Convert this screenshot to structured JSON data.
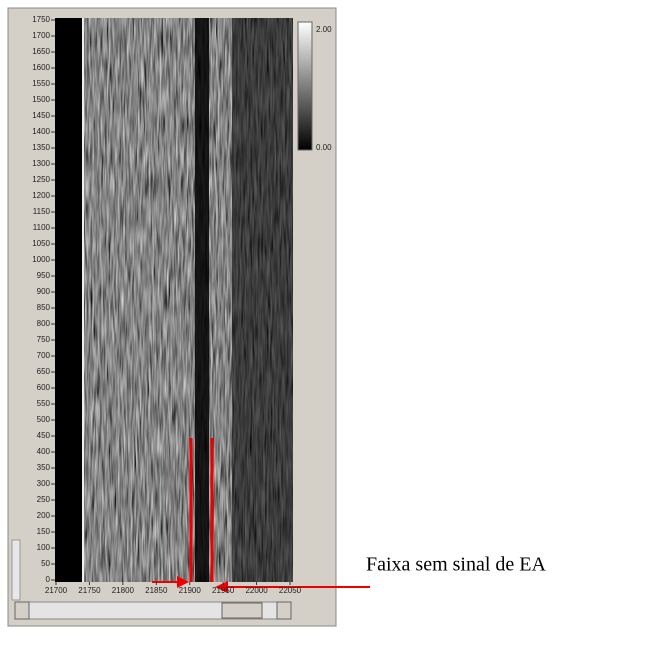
{
  "graph": {
    "y_ticks": [
      0,
      50,
      100,
      150,
      200,
      250,
      300,
      350,
      400,
      450,
      500,
      550,
      600,
      650,
      700,
      750,
      800,
      850,
      900,
      950,
      1000,
      1050,
      1100,
      1150,
      1200,
      1250,
      1300,
      1350,
      1400,
      1450,
      1500,
      1550,
      1600,
      1650,
      1700,
      1750
    ],
    "x_ticks": [
      21700,
      21750,
      21800,
      21850,
      21900,
      21950,
      22000,
      22050
    ],
    "scale_labels": [
      "2.00",
      "0.00"
    ]
  },
  "annotation": "Faixa sem sinal de EA"
}
